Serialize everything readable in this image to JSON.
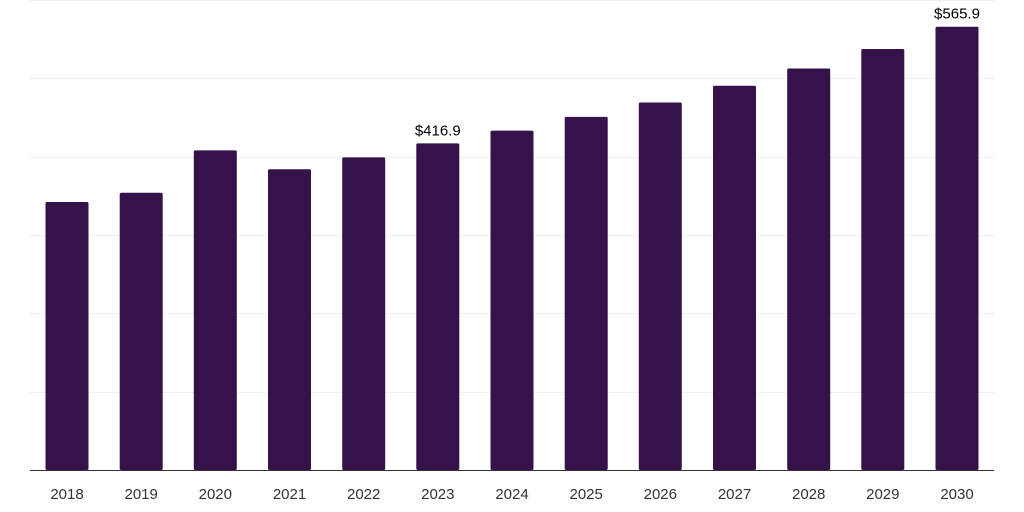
{
  "chart_data": {
    "type": "bar",
    "title": "",
    "xlabel": "",
    "ylabel": "",
    "categories": [
      "2018",
      "2019",
      "2020",
      "2021",
      "2022",
      "2023",
      "2024",
      "2025",
      "2026",
      "2027",
      "2028",
      "2029",
      "2030"
    ],
    "values": [
      342.1,
      353.9,
      408.0,
      384.0,
      399.1,
      416.9,
      433.3,
      450.8,
      469.1,
      490.5,
      512.6,
      537.5,
      565.9
    ],
    "data_labels": [
      {
        "category": "2023",
        "text": "$416.9"
      },
      {
        "category": "2030",
        "text": "$565.9"
      }
    ],
    "ylim": [
      0,
      600
    ],
    "y_gridlines": [
      100,
      200,
      300,
      400,
      500,
      600
    ],
    "grid": true,
    "legend": "none",
    "colors": {
      "bar": "#35124a",
      "gridline": "#efefef",
      "axis": "#333333",
      "label": "#333333"
    }
  }
}
